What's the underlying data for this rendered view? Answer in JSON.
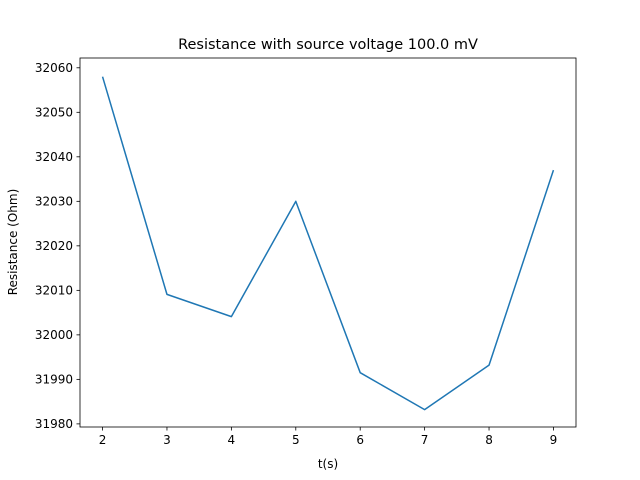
{
  "chart_data": {
    "type": "line",
    "title": "Resistance with source voltage 100.0 mV",
    "xlabel": "t(s)",
    "ylabel": "Resistance (Ohm)",
    "xlim": [
      1.65,
      9.35
    ],
    "ylim": [
      31979.3,
      32062.2
    ],
    "x_ticks": [
      2,
      3,
      4,
      5,
      6,
      7,
      8,
      9
    ],
    "y_ticks": [
      31980,
      31990,
      32000,
      32010,
      32020,
      32030,
      32040,
      32050,
      32060
    ],
    "grid": false,
    "series": [
      {
        "color": "#1f77b4",
        "x": [
          2,
          3,
          4,
          5,
          6,
          7,
          8,
          9
        ],
        "y": [
          32058.0,
          32009.1,
          32004.1,
          32030.0,
          31991.5,
          31983.2,
          31993.2,
          32037.0
        ]
      }
    ]
  }
}
